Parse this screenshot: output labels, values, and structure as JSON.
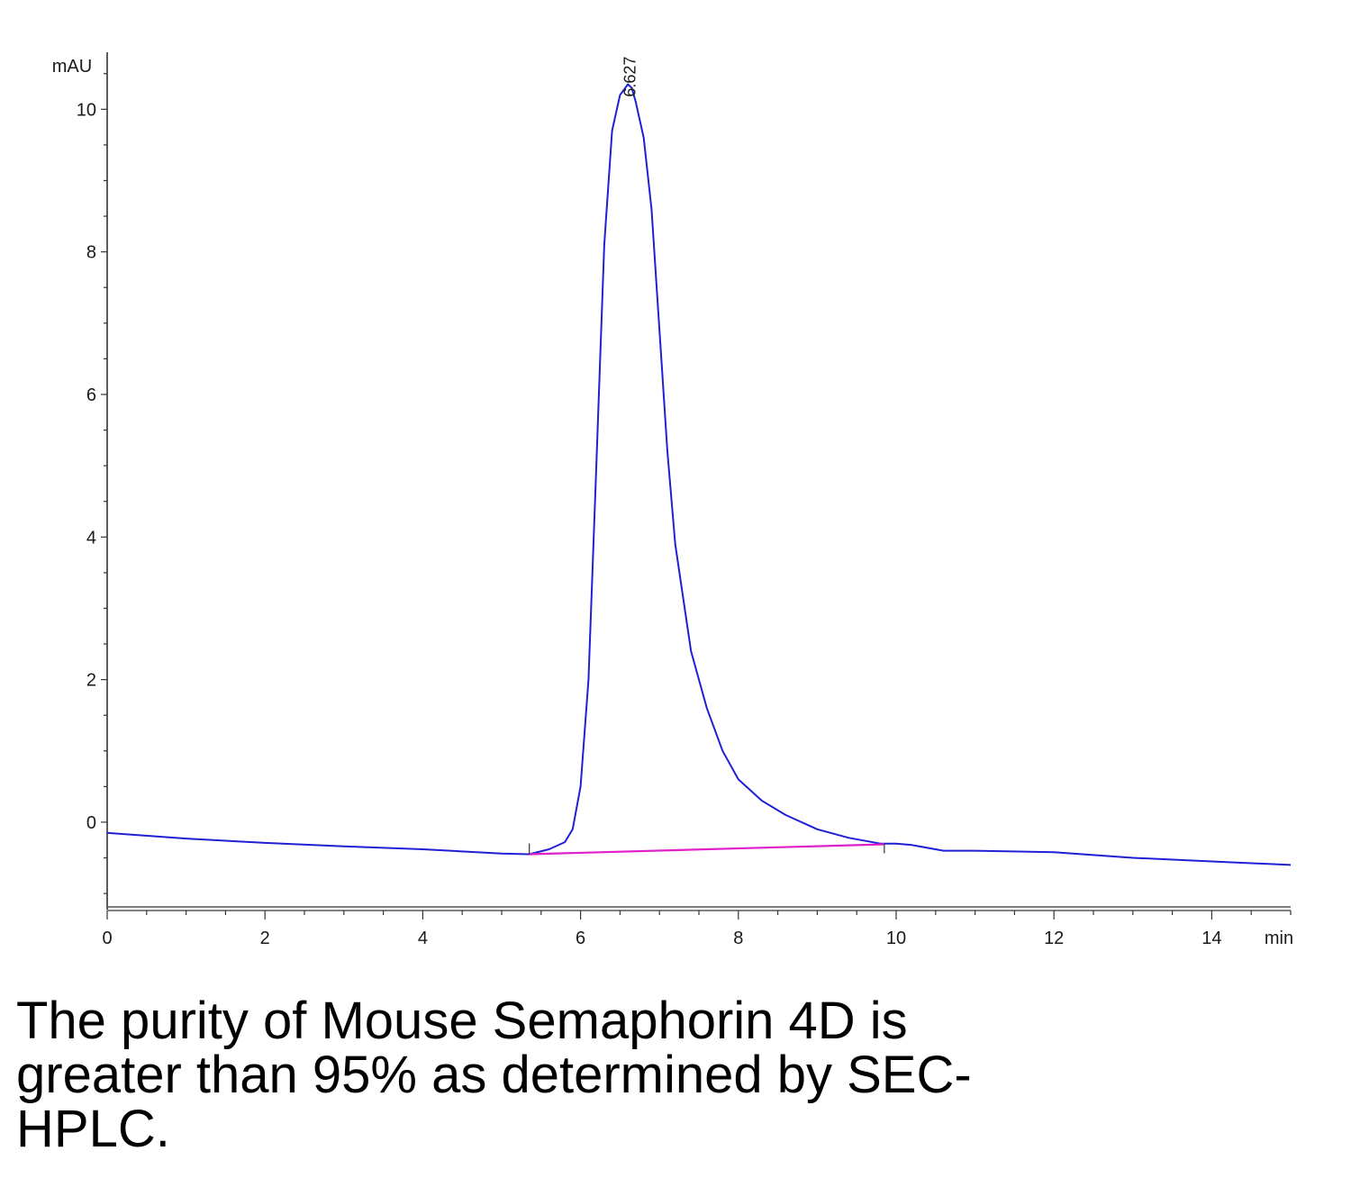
{
  "chart_data": {
    "type": "line",
    "title": "",
    "xlabel": "min",
    "ylabel": "mAU",
    "xlim": [
      0,
      15
    ],
    "ylim": [
      -1.1,
      10.8
    ],
    "x_ticks": [
      0,
      2,
      4,
      6,
      8,
      10,
      12,
      14
    ],
    "y_ticks": [
      0,
      2,
      4,
      6,
      8,
      10
    ],
    "x_minor_step": 0.5,
    "y_minor_step": 0.5,
    "grid": false,
    "legend": "none",
    "series": [
      {
        "name": "",
        "color": "#1f1fd6",
        "x": [
          0,
          1,
          2,
          3,
          4,
          5,
          5.35,
          5.6,
          5.8,
          5.9,
          6.0,
          6.1,
          6.2,
          6.3,
          6.4,
          6.5,
          6.6,
          6.65,
          6.7,
          6.8,
          6.9,
          7.0,
          7.1,
          7.2,
          7.4,
          7.6,
          7.8,
          8.0,
          8.3,
          8.6,
          9.0,
          9.4,
          9.8,
          10.0,
          10.2,
          10.6,
          11.0,
          12.0,
          13.0,
          14.0,
          15.0
        ],
        "y": [
          -0.15,
          -0.23,
          -0.29,
          -0.34,
          -0.38,
          -0.44,
          -0.45,
          -0.38,
          -0.28,
          -0.1,
          0.5,
          2.0,
          5.0,
          8.1,
          9.7,
          10.2,
          10.35,
          10.3,
          10.1,
          9.6,
          8.6,
          6.9,
          5.2,
          3.9,
          2.4,
          1.6,
          1.0,
          0.6,
          0.3,
          0.1,
          -0.1,
          -0.22,
          -0.3,
          -0.3,
          -0.32,
          -0.4,
          -0.4,
          -0.42,
          -0.5,
          -0.55,
          -0.6
        ]
      },
      {
        "name": "",
        "color": "#e020c8",
        "x": [
          5.35,
          9.85
        ],
        "y": [
          -0.45,
          -0.31
        ]
      }
    ],
    "annotations": [
      {
        "text": "6.627",
        "x": 6.627,
        "y": 10.35
      }
    ]
  },
  "caption": "The purity of Mouse Semaphorin 4D is greater than 95% as determined by SEC-HPLC."
}
